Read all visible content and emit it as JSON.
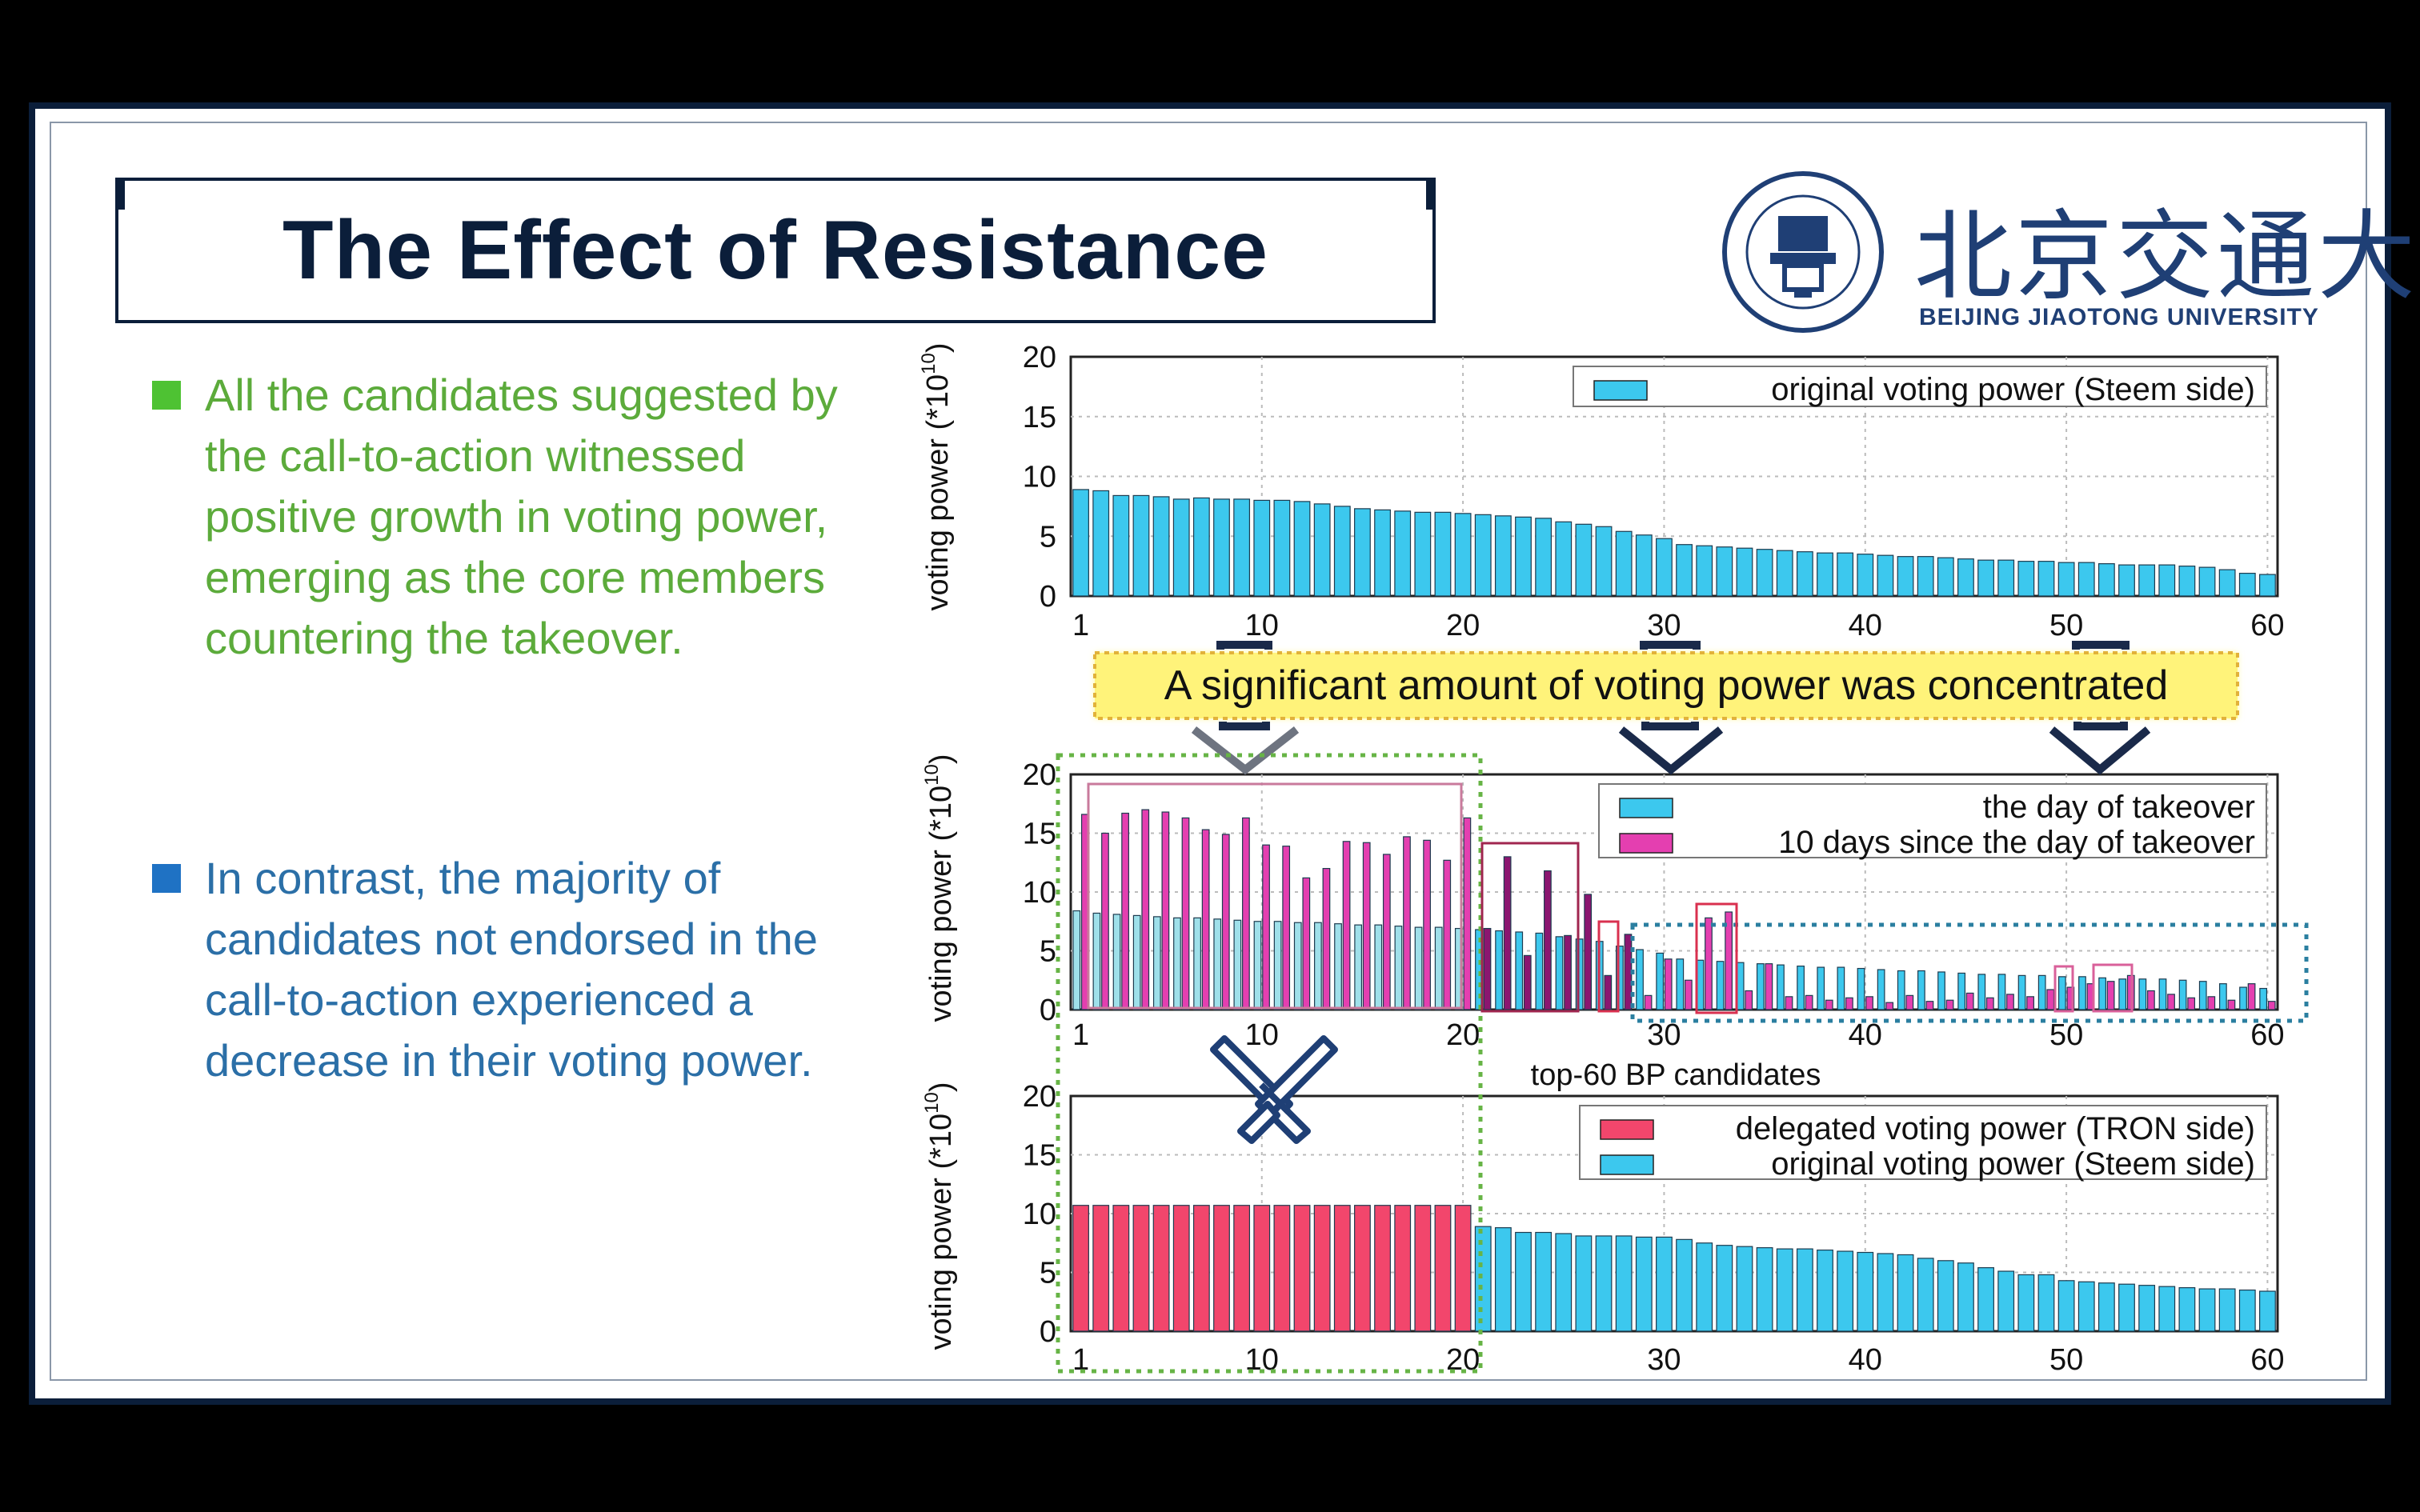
{
  "slide": {
    "title": "The Effect of Resistance",
    "logo": {
      "name_cn": "北京交通大學",
      "name_en": "BEIJING JIAOTONG UNIVERSITY",
      "seal_icon": "university-seal-icon"
    },
    "bullets": [
      {
        "text": "All the candidates suggested by the call-to-action witnessed positive growth in voting power, emerging as the core members countering the takeover.",
        "color": "#5cab3b"
      },
      {
        "text": "In contrast, the majority of candidates not endorsed in the call-to-action experienced a decrease in their voting power.",
        "color": "#2b6fa7"
      }
    ],
    "callout": "A significant amount of voting power was concentrated",
    "swords_icon": "crossed-swords-icon"
  },
  "chart_data": [
    {
      "type": "bar",
      "ylabel": "voting power (*10",
      "ylabel_exp": "10",
      "ylim": [
        0,
        20
      ],
      "yticks": [
        0,
        5,
        10,
        15,
        20
      ],
      "xticks": [
        1,
        10,
        20,
        30,
        40,
        50,
        60
      ],
      "grid": true,
      "legend_position": "top-right",
      "series": [
        {
          "name": "original voting power (Steem side)",
          "color": "#3cc8ee",
          "values": [
            8.9,
            8.8,
            8.4,
            8.4,
            8.3,
            8.1,
            8.2,
            8.1,
            8.1,
            8.0,
            8.0,
            7.9,
            7.7,
            7.5,
            7.3,
            7.2,
            7.1,
            7.0,
            7.0,
            6.9,
            6.8,
            6.7,
            6.6,
            6.5,
            6.2,
            6.0,
            5.8,
            5.4,
            5.1,
            4.8,
            4.3,
            4.2,
            4.1,
            4.0,
            3.9,
            3.8,
            3.7,
            3.6,
            3.6,
            3.5,
            3.4,
            3.3,
            3.3,
            3.2,
            3.1,
            3.0,
            3.0,
            2.9,
            2.9,
            2.8,
            2.8,
            2.7,
            2.6,
            2.6,
            2.6,
            2.5,
            2.4,
            2.2,
            1.9,
            1.8
          ]
        }
      ]
    },
    {
      "type": "bar",
      "ylabel": "voting power (*10",
      "ylabel_exp": "10",
      "xlabel": "top-60 BP candidates",
      "ylim": [
        0,
        20
      ],
      "yticks": [
        0,
        5,
        10,
        15,
        20
      ],
      "xticks": [
        1,
        10,
        20,
        30,
        40,
        50,
        60
      ],
      "grid": true,
      "legend_position": "top-right",
      "series": [
        {
          "name": "the day of takeover",
          "color": "#3cc8ee",
          "values": [
            8.4,
            8.2,
            8.1,
            8.0,
            7.9,
            7.8,
            7.8,
            7.7,
            7.6,
            7.5,
            7.5,
            7.4,
            7.4,
            7.3,
            7.2,
            7.2,
            7.1,
            7.0,
            7.0,
            6.9,
            6.8,
            6.7,
            6.6,
            6.5,
            6.2,
            6.0,
            5.8,
            5.4,
            5.1,
            4.8,
            4.3,
            4.2,
            4.1,
            4.0,
            3.9,
            3.8,
            3.7,
            3.6,
            3.6,
            3.5,
            3.4,
            3.3,
            3.3,
            3.2,
            3.1,
            3.0,
            3.0,
            2.9,
            2.9,
            2.8,
            2.8,
            2.7,
            2.6,
            2.6,
            2.6,
            2.5,
            2.4,
            2.2,
            1.9,
            1.8
          ]
        },
        {
          "name": "10 days since the day of takeover",
          "color": "#e43fb0",
          "values": [
            16.6,
            15.0,
            16.7,
            17.0,
            16.8,
            16.3,
            15.3,
            14.9,
            16.3,
            14.0,
            13.9,
            11.2,
            12.0,
            14.3,
            14.2,
            13.2,
            14.7,
            14.4,
            12.7,
            16.3,
            6.9,
            13.0,
            4.6,
            11.8,
            6.3,
            9.8,
            2.9,
            6.4,
            1.2,
            4.3,
            2.5,
            7.8,
            8.3,
            1.6,
            3.9,
            1.1,
            1.2,
            0.8,
            1.0,
            1.1,
            0.6,
            1.2,
            0.7,
            0.8,
            1.4,
            1.0,
            1.3,
            1.1,
            1.7,
            1.9,
            2.2,
            2.4,
            2.9,
            1.6,
            1.3,
            1.0,
            1.1,
            0.8,
            2.2,
            0.7
          ]
        }
      ]
    },
    {
      "type": "bar",
      "ylabel": "voting power (*10",
      "ylabel_exp": "10",
      "ylim": [
        0,
        20
      ],
      "yticks": [
        0,
        5,
        10,
        15,
        20
      ],
      "xticks": [
        1,
        10,
        20,
        30,
        40,
        50,
        60
      ],
      "grid": true,
      "legend_position": "top-right",
      "series": [
        {
          "name": "delegated voting power (TRON side)",
          "color": "#f2466c",
          "values": [
            10.7,
            10.7,
            10.7,
            10.7,
            10.7,
            10.7,
            10.7,
            10.7,
            10.7,
            10.7,
            10.7,
            10.7,
            10.7,
            10.7,
            10.7,
            10.7,
            10.7,
            10.7,
            10.7,
            10.7,
            0,
            0,
            0,
            0,
            0,
            0,
            0,
            0,
            0,
            0,
            0,
            0,
            0,
            0,
            0,
            0,
            0,
            0,
            0,
            0,
            0,
            0,
            0,
            0,
            0,
            0,
            0,
            0,
            0,
            0,
            0,
            0,
            0,
            0,
            0,
            0,
            0,
            0,
            0,
            0
          ]
        },
        {
          "name": "original voting power (Steem side)",
          "color": "#3cc8ee",
          "values": [
            0,
            0,
            0,
            0,
            0,
            0,
            0,
            0,
            0,
            0,
            0,
            0,
            0,
            0,
            0,
            0,
            0,
            0,
            0,
            0,
            8.9,
            8.8,
            8.4,
            8.4,
            8.3,
            8.1,
            8.1,
            8.1,
            8.0,
            8.0,
            7.8,
            7.5,
            7.3,
            7.2,
            7.1,
            7.0,
            7.0,
            6.9,
            6.8,
            6.7,
            6.6,
            6.5,
            6.2,
            6.0,
            5.8,
            5.4,
            5.1,
            4.8,
            4.8,
            4.3,
            4.2,
            4.1,
            4.0,
            3.9,
            3.8,
            3.7,
            3.6,
            3.6,
            3.5,
            3.4
          ]
        }
      ]
    }
  ]
}
